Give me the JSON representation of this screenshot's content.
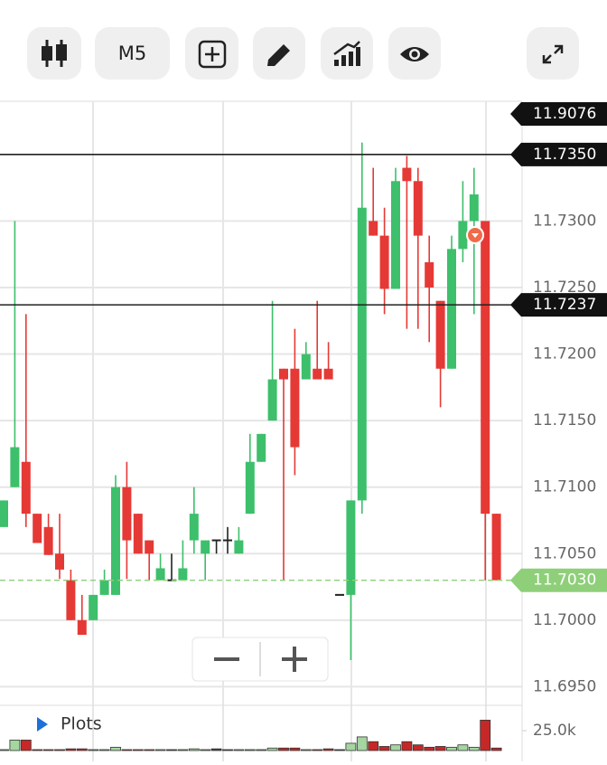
{
  "toolbar": {
    "interval": "M5"
  },
  "panel": {
    "plots_label": "Plots"
  },
  "chart_data": {
    "type": "candlestick",
    "open": [
      11.707,
      11.71,
      11.7119,
      11.708,
      11.707,
      11.705,
      11.703,
      11.7,
      11.7,
      11.7019,
      11.7019,
      11.71,
      11.708,
      11.706,
      11.703,
      11.703,
      11.703,
      11.706,
      11.705,
      11.706,
      11.706,
      11.705,
      11.708,
      11.7119,
      11.715,
      11.7189,
      11.7189,
      11.7181,
      11.7189,
      11.7189,
      11.7019,
      11.7019,
      11.709,
      11.73,
      11.7289,
      11.7249,
      11.734,
      11.733,
      11.7269,
      11.724,
      11.7189,
      11.7279,
      11.73,
      11.73,
      11.708
    ],
    "high": [
      11.709,
      11.73,
      11.723,
      11.708,
      11.708,
      11.708,
      11.7038,
      11.7019,
      11.7019,
      11.7038,
      11.7109,
      11.7119,
      11.708,
      11.706,
      11.705,
      11.705,
      11.706,
      11.71,
      11.706,
      11.706,
      11.707,
      11.707,
      11.714,
      11.714,
      11.724,
      11.7189,
      11.7219,
      11.7209,
      11.724,
      11.7209,
      11.7019,
      11.709,
      11.7359,
      11.734,
      11.731,
      11.734,
      11.7349,
      11.734,
      11.7289,
      11.724,
      11.7289,
      11.733,
      11.734,
      11.73,
      11.708
    ],
    "low": [
      11.707,
      11.71,
      11.707,
      11.7058,
      11.7049,
      11.7031,
      11.7,
      11.6989,
      11.7,
      11.7019,
      11.7019,
      11.7031,
      11.705,
      11.703,
      11.703,
      11.703,
      11.703,
      11.705,
      11.703,
      11.705,
      11.705,
      11.705,
      11.708,
      11.7119,
      11.715,
      11.703,
      11.7109,
      11.7181,
      11.7181,
      11.7181,
      11.7019,
      11.697,
      11.708,
      11.7289,
      11.723,
      11.7249,
      11.7219,
      11.7219,
      11.7209,
      11.716,
      11.7189,
      11.7269,
      11.723,
      11.703,
      11.703
    ],
    "close": [
      11.709,
      11.713,
      11.708,
      11.7058,
      11.7049,
      11.7038,
      11.7,
      11.6989,
      11.7019,
      11.703,
      11.71,
      11.706,
      11.705,
      11.705,
      11.7039,
      11.703,
      11.7039,
      11.708,
      11.706,
      11.706,
      11.706,
      11.706,
      11.7119,
      11.714,
      11.7181,
      11.7181,
      11.713,
      11.72,
      11.7181,
      11.7181,
      11.7019,
      11.709,
      11.731,
      11.7289,
      11.7249,
      11.733,
      11.733,
      11.7289,
      11.725,
      11.7189,
      11.7279,
      11.73,
      11.732,
      11.708,
      11.703
    ],
    "volume": [
      0,
      12000,
      12000,
      0,
      0,
      0,
      1000,
      1000,
      0,
      0,
      3000,
      0,
      0,
      0,
      0,
      0,
      0,
      1000,
      0,
      1000,
      0,
      0,
      0,
      0,
      2000,
      2000,
      2000,
      0,
      0,
      1000,
      0,
      8000,
      16000,
      10000,
      4000,
      6000,
      10000,
      6000,
      3000,
      4000,
      3000,
      6000,
      3000,
      37000,
      2000
    ],
    "up_color": "#3dbf6b",
    "down_color": "#e53935",
    "neutral_color": "#222222",
    "ylim": [
      11.6936,
      11.739
    ],
    "yticks": [
      {
        "value": 11.695,
        "label": "11.6950"
      },
      {
        "value": 11.7,
        "label": "11.7000"
      },
      {
        "value": 11.705,
        "label": "11.7050"
      },
      {
        "value": 11.71,
        "label": "11.7100"
      },
      {
        "value": 11.715,
        "label": "11.7150"
      },
      {
        "value": 11.72,
        "label": "11.7200"
      },
      {
        "value": 11.725,
        "label": "11.7250"
      },
      {
        "value": 11.73,
        "label": "11.7300"
      }
    ],
    "volume_lim": [
      0,
      56800
    ],
    "volume_ticks": [
      {
        "value": 25000,
        "label": "25.0k"
      }
    ],
    "price_levels": [
      {
        "value": 11.9076,
        "label": "11.9076"
      },
      {
        "value": 11.735,
        "label": "11.7350"
      },
      {
        "value": 11.7237,
        "label": "11.7237"
      }
    ],
    "current_price": {
      "value": 11.703,
      "label": "11.7030",
      "color": "#8fcf7a"
    },
    "grid": true
  }
}
